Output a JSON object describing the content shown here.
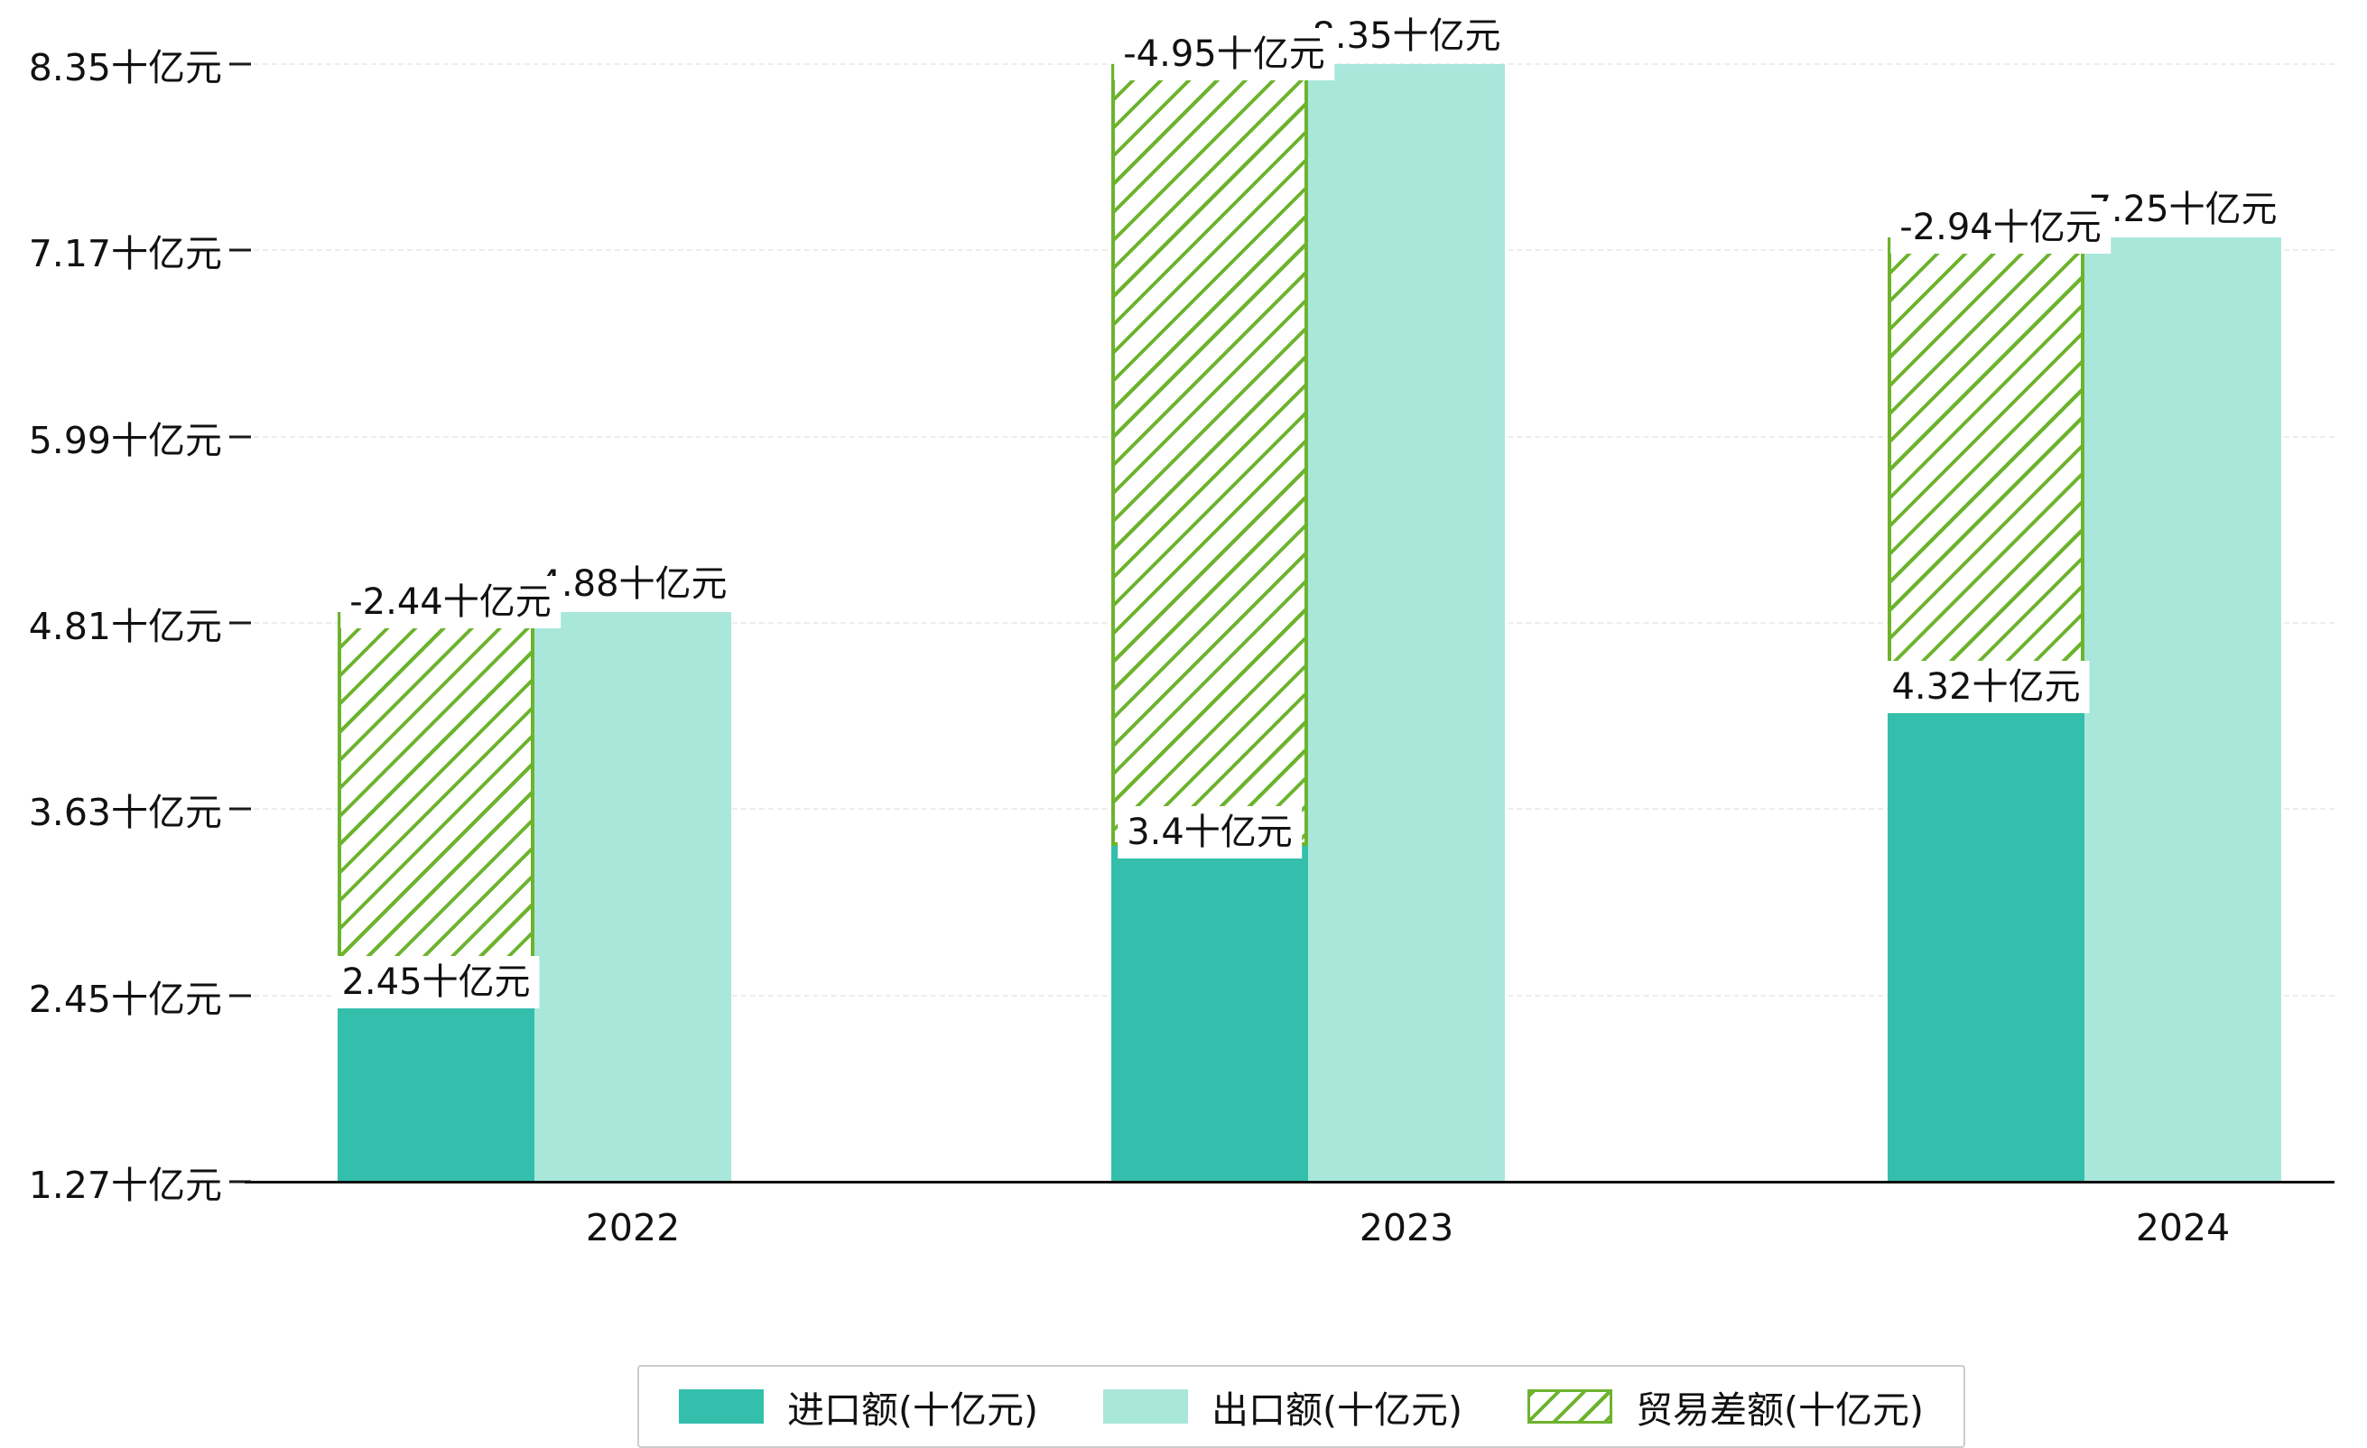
{
  "chart_data": {
    "type": "bar",
    "categories": [
      "2022",
      "2023",
      "2024"
    ],
    "series": [
      {
        "name": "进口额(十亿元)",
        "values": [
          2.45,
          3.4,
          4.32
        ],
        "labels": [
          "2.45十亿元",
          "3.4十亿元",
          "4.32十亿元"
        ],
        "color": "#33bfac",
        "style": "solid"
      },
      {
        "name": "出口额(十亿元)",
        "values": [
          4.88,
          8.35,
          7.25
        ],
        "labels": [
          "4.88十亿元",
          "8.35十亿元",
          "7.25十亿元"
        ],
        "color": "#a9e7db",
        "style": "solid"
      },
      {
        "name": "贸易差额(十亿元)",
        "values": [
          -2.44,
          -4.95,
          -2.94
        ],
        "labels": [
          "-2.44十亿元",
          "-4.95十亿元",
          "-2.94十亿元"
        ],
        "color": "#6db32e",
        "style": "hatched"
      }
    ],
    "y_ticks": [
      {
        "value": 1.27,
        "label": "1.27十亿元"
      },
      {
        "value": 2.45,
        "label": "2.45十亿元"
      },
      {
        "value": 3.63,
        "label": "3.63十亿元"
      },
      {
        "value": 4.81,
        "label": "4.81十亿元"
      },
      {
        "value": 5.99,
        "label": "5.99十亿元"
      },
      {
        "value": 7.17,
        "label": "7.17十亿元"
      },
      {
        "value": 8.35,
        "label": "8.35十亿元"
      }
    ],
    "ylim": [
      1.27,
      8.35
    ],
    "unit": "十亿元",
    "grid": true,
    "legend_position": "bottom"
  },
  "colors": {
    "import": "#33bfac",
    "export": "#a9e7db",
    "balance": "#6db32e",
    "axis": "#111111",
    "gridline": "#ededed",
    "label_background": "#ffffff",
    "legend_border": "#cccccc",
    "background": "#ffffff",
    "text": "#111111"
  }
}
